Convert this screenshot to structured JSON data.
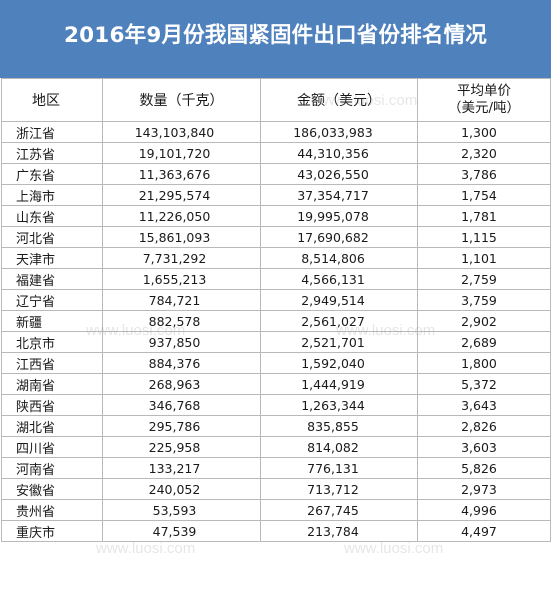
{
  "title": "2016年9月份我国紧固件出口省份排名情况",
  "colors": {
    "title_background": "#4f81bd",
    "title_text": "#ffffff",
    "grid_line": "#b9b9b9",
    "text": "#1a1a1a"
  },
  "watermark_text": "www.luosi.com",
  "columns": {
    "region": "地区",
    "quantity": "数量（千克）",
    "amount": "金额（美元）",
    "unit_price_line1": "平均单价",
    "unit_price_line2": "（美元/吨）"
  },
  "rows": [
    {
      "region": "浙江省",
      "quantity": "143,103,840",
      "amount": "186,033,983",
      "unit_price": "1,300"
    },
    {
      "region": "江苏省",
      "quantity": "19,101,720",
      "amount": "44,310,356",
      "unit_price": "2,320"
    },
    {
      "region": "广东省",
      "quantity": "11,363,676",
      "amount": "43,026,550",
      "unit_price": "3,786"
    },
    {
      "region": "上海市",
      "quantity": "21,295,574",
      "amount": "37,354,717",
      "unit_price": "1,754"
    },
    {
      "region": "山东省",
      "quantity": "11,226,050",
      "amount": "19,995,078",
      "unit_price": "1,781"
    },
    {
      "region": "河北省",
      "quantity": "15,861,093",
      "amount": "17,690,682",
      "unit_price": "1,115"
    },
    {
      "region": "天津市",
      "quantity": "7,731,292",
      "amount": "8,514,806",
      "unit_price": "1,101"
    },
    {
      "region": "福建省",
      "quantity": "1,655,213",
      "amount": "4,566,131",
      "unit_price": "2,759"
    },
    {
      "region": "辽宁省",
      "quantity": "784,721",
      "amount": "2,949,514",
      "unit_price": "3,759"
    },
    {
      "region": "新疆",
      "quantity": "882,578",
      "amount": "2,561,027",
      "unit_price": "2,902"
    },
    {
      "region": "北京市",
      "quantity": "937,850",
      "amount": "2,521,701",
      "unit_price": "2,689"
    },
    {
      "region": "江西省",
      "quantity": "884,376",
      "amount": "1,592,040",
      "unit_price": "1,800"
    },
    {
      "region": "湖南省",
      "quantity": "268,963",
      "amount": "1,444,919",
      "unit_price": "5,372"
    },
    {
      "region": "陕西省",
      "quantity": "346,768",
      "amount": "1,263,344",
      "unit_price": "3,643"
    },
    {
      "region": "湖北省",
      "quantity": "295,786",
      "amount": "835,855",
      "unit_price": "2,826"
    },
    {
      "region": "四川省",
      "quantity": "225,958",
      "amount": "814,082",
      "unit_price": "3,603"
    },
    {
      "region": "河南省",
      "quantity": "133,217",
      "amount": "776,131",
      "unit_price": "5,826"
    },
    {
      "region": "安徽省",
      "quantity": "240,052",
      "amount": "713,712",
      "unit_price": "2,973"
    },
    {
      "region": "贵州省",
      "quantity": "53,593",
      "amount": "267,745",
      "unit_price": "4,996"
    },
    {
      "region": "重庆市",
      "quantity": "47,539",
      "amount": "213,784",
      "unit_price": "4,497"
    }
  ]
}
